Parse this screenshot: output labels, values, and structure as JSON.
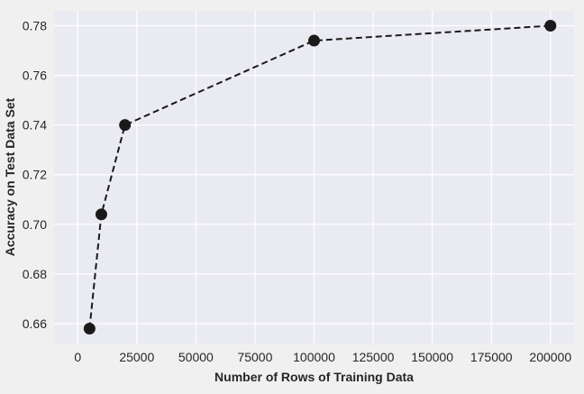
{
  "chart_data": {
    "type": "line",
    "title": "",
    "xlabel": "Number of Rows of Training Data",
    "ylabel": "Accuracy on Test Data Set",
    "xlim": [
      -10000,
      210000
    ],
    "ylim": [
      0.652,
      0.786
    ],
    "xticks": [
      0,
      25000,
      50000,
      75000,
      100000,
      125000,
      150000,
      175000,
      200000
    ],
    "yticks": [
      0.66,
      0.68,
      0.7,
      0.72,
      0.74,
      0.76,
      0.78
    ],
    "ytick_labels": [
      "0.66",
      "0.68",
      "0.70",
      "0.72",
      "0.74",
      "0.76",
      "0.78"
    ],
    "grid": true,
    "series": [
      {
        "x": [
          5000,
          10000,
          20000,
          100000,
          200000
        ],
        "y": [
          0.658,
          0.704,
          0.74,
          0.774,
          0.78
        ],
        "line_style": "dashed",
        "marker": "circle",
        "color": "#1a1a1a"
      }
    ],
    "colors": {
      "plot_background": "#eaeaf2",
      "figure_background": "#f0f0f0",
      "grid": "#ffffff"
    }
  }
}
